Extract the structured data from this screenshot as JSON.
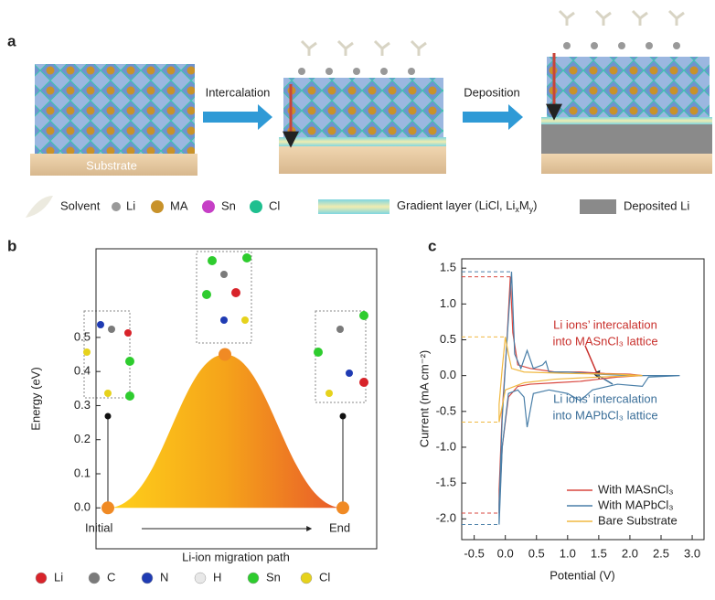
{
  "panel_a": {
    "label": "a",
    "arrows": [
      "Intercalation",
      "Deposition"
    ],
    "substrate": "Substrate",
    "legend": {
      "solvent": "Solvent",
      "li": "Li",
      "ma": "MA",
      "sn": "Sn",
      "cl": "Cl",
      "gradient": [
        "Gradient layer (LiCl, Li",
        "x",
        "M",
        "y",
        ")"
      ],
      "deposited": "Deposited Li"
    }
  },
  "chart_data": [
    {
      "type": "energy",
      "label": "b",
      "y_label": "Energy (eV)",
      "x_label": "Li-ion migration path",
      "categories": [
        "Initial",
        null,
        "End"
      ],
      "values": [
        0,
        0.45,
        0
      ],
      "color": "#f08a24",
      "ylim": [
        -0.12,
        0.76
      ],
      "yticks": [
        {
          "value": 0,
          "label": "0.0"
        },
        {
          "value": 0.1,
          "label": "0.1"
        },
        {
          "value": 0.2,
          "label": "0.2"
        },
        {
          "value": 0.3,
          "label": "0.3"
        },
        {
          "value": 0.4,
          "label": "0.4"
        },
        {
          "value": 0.5,
          "label": "0.5"
        }
      ],
      "atoms": [
        {
          "name": "Li",
          "color": "#d8232a"
        },
        {
          "name": "C",
          "color": "#7a7a7a"
        },
        {
          "name": "N",
          "color": "#1f3bb3"
        },
        {
          "name": "H",
          "color": "#e8e8e8"
        },
        {
          "name": "Sn",
          "color": "#2ecc2e"
        },
        {
          "name": "Cl",
          "color": "#e6d21c"
        }
      ]
    },
    {
      "type": "line",
      "label": "c",
      "x_label": "Potential (V)",
      "y_label": "Current (mA cm⁻²)",
      "xlim": [
        -0.7,
        3.19
      ],
      "ylim": [
        -2.29,
        1.63
      ],
      "xticks": [
        {
          "value": -0.5,
          "label": "-0.5"
        },
        {
          "value": 0,
          "label": "0.0"
        },
        {
          "value": 0.5,
          "label": "0.5"
        },
        {
          "value": 1,
          "label": "1.0"
        },
        {
          "value": 1.5,
          "label": "1.5"
        },
        {
          "value": 2,
          "label": "2.0"
        },
        {
          "value": 2.5,
          "label": "2.5"
        },
        {
          "value": 3,
          "label": "3.0"
        }
      ],
      "yticks": [
        {
          "value": -2,
          "label": "-2.0"
        },
        {
          "value": -1.5,
          "label": "-1.5"
        },
        {
          "value": -1,
          "label": "-1.0"
        },
        {
          "value": -0.5,
          "label": "-0.5"
        },
        {
          "value": 0,
          "label": "0.0"
        },
        {
          "value": 0.5,
          "label": "0.5"
        },
        {
          "value": 1,
          "label": "1.0"
        },
        {
          "value": 1.5,
          "label": "1.5"
        }
      ],
      "series": [
        {
          "name": "With MASnCl₃",
          "color": "#d9473f",
          "x": [
            2.2,
            1.8,
            1.5,
            1.2,
            0.8,
            0.4,
            0.2,
            0.05,
            -0.05,
            -0.1,
            -0.1,
            -0.05,
            0.02,
            0.08,
            0.12,
            0.2,
            0.4,
            0.8,
            1.2,
            1.6,
            2.0,
            2.2
          ],
          "values": [
            0,
            -0.02,
            -0.05,
            -0.08,
            -0.1,
            -0.12,
            -0.15,
            -0.3,
            -1.0,
            -1.92,
            -1.6,
            -0.5,
            0.4,
            1.38,
            0.6,
            0.15,
            0.1,
            0.05,
            0.05,
            0.03,
            0.02,
            0
          ]
        },
        {
          "name": "With MAPbCl₃",
          "color": "#4a7fa8",
          "x": [
            2.8,
            2.3,
            2.2,
            1.8,
            1.4,
            1.2,
            1.0,
            0.7,
            0.45,
            0.35,
            0.3,
            0.2,
            0.05,
            -0.05,
            -0.1,
            -0.1,
            -0.05,
            0.02,
            0.1,
            0.15,
            0.25,
            0.35,
            0.45,
            0.6,
            0.65,
            0.7,
            1.0,
            1.5,
            2.0,
            2.3,
            2.8
          ],
          "values": [
            0,
            -0.02,
            -0.15,
            -0.12,
            -0.2,
            -0.35,
            -0.25,
            -0.2,
            -0.25,
            -0.72,
            -0.3,
            -0.2,
            -0.25,
            -1.0,
            -2.08,
            -1.8,
            -0.6,
            0.4,
            1.45,
            0.3,
            0.1,
            0.35,
            0.1,
            0.15,
            0.2,
            0.05,
            0.05,
            0.02,
            0,
            0,
            0
          ]
        },
        {
          "name": "Bare Substrate",
          "color": "#f0b840",
          "x": [
            2.2,
            1.5,
            0.8,
            0.3,
            0.0,
            -0.1,
            -0.1,
            -0.05,
            0.0,
            0.05,
            0.1,
            0.3,
            1.0,
            1.8,
            2.2
          ],
          "values": [
            0,
            -0.02,
            -0.05,
            -0.1,
            -0.2,
            -0.65,
            -0.4,
            0.1,
            0.54,
            0.3,
            0.1,
            0.05,
            0.03,
            0.02,
            0
          ]
        }
      ],
      "annotations": [
        {
          "lines": [
            "Li ions’ intercalation",
            "into MASnCl₃ lattice"
          ],
          "color": "#c9302c"
        },
        {
          "lines": [
            "Li ions’ intercalation",
            "into MAPbCl₃ lattice"
          ],
          "color": "#3b6f99"
        }
      ]
    }
  ]
}
